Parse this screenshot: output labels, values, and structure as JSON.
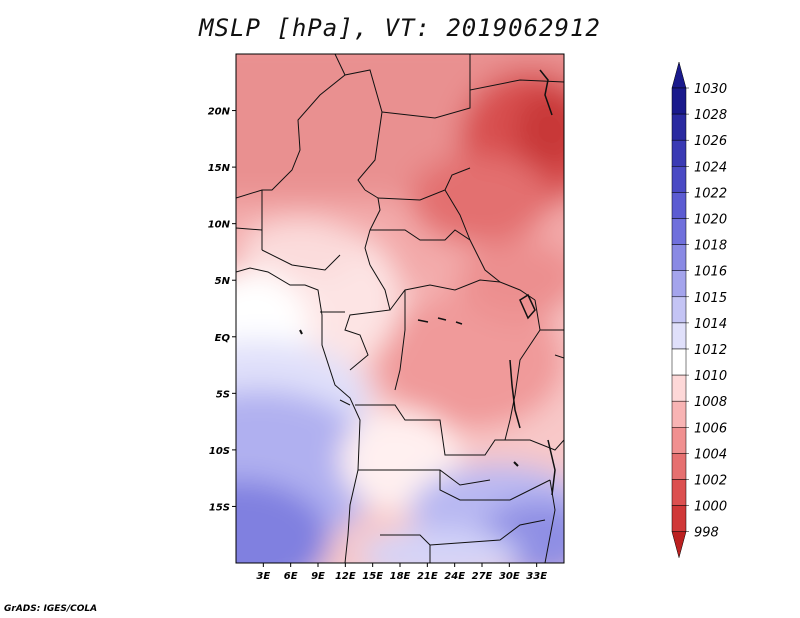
{
  "title": "MSLP [hPa], VT: 2019062912",
  "credit": "GrADS: IGES/COLA",
  "map": {
    "lon_range": [
      0,
      36
    ],
    "lat_range": [
      -20,
      25
    ],
    "lat_ticks": [
      {
        "value": 20,
        "label": "20N"
      },
      {
        "value": 15,
        "label": "15N"
      },
      {
        "value": 10,
        "label": "10N"
      },
      {
        "value": 5,
        "label": "5N"
      },
      {
        "value": 0,
        "label": "EQ"
      },
      {
        "value": -5,
        "label": "5S"
      },
      {
        "value": -10,
        "label": "10S"
      },
      {
        "value": -15,
        "label": "15S"
      }
    ],
    "lon_ticks": [
      {
        "value": 3,
        "label": "3E"
      },
      {
        "value": 6,
        "label": "6E"
      },
      {
        "value": 9,
        "label": "9E"
      },
      {
        "value": 12,
        "label": "12E"
      },
      {
        "value": 15,
        "label": "15E"
      },
      {
        "value": 18,
        "label": "18E"
      },
      {
        "value": 21,
        "label": "21E"
      },
      {
        "value": 24,
        "label": "24E"
      },
      {
        "value": 27,
        "label": "27E"
      },
      {
        "value": 30,
        "label": "30E"
      },
      {
        "value": 33,
        "label": "33E"
      }
    ]
  },
  "colorbar": {
    "levels": [
      "1030",
      "1028",
      "1026",
      "1024",
      "1022",
      "1020",
      "1018",
      "1016",
      "1015",
      "1014",
      "1012",
      "1010",
      "1008",
      "1006",
      "1004",
      "1002",
      "1000",
      "998"
    ],
    "colors": [
      "#1a1a8c",
      "#2a2aa0",
      "#3a3ab4",
      "#4a4ac4",
      "#5c5cd2",
      "#7070dc",
      "#8a8ae4",
      "#a4a4ec",
      "#c4c4f4",
      "#e0e0fa",
      "#ffffff",
      "#fdd8d8",
      "#f8b4b4",
      "#f09090",
      "#e67070",
      "#dc5050",
      "#d03838",
      "#bb2020"
    ],
    "top_arrow_color": "#1a1a8c",
    "bottom_arrow_color": "#bb2020"
  }
}
